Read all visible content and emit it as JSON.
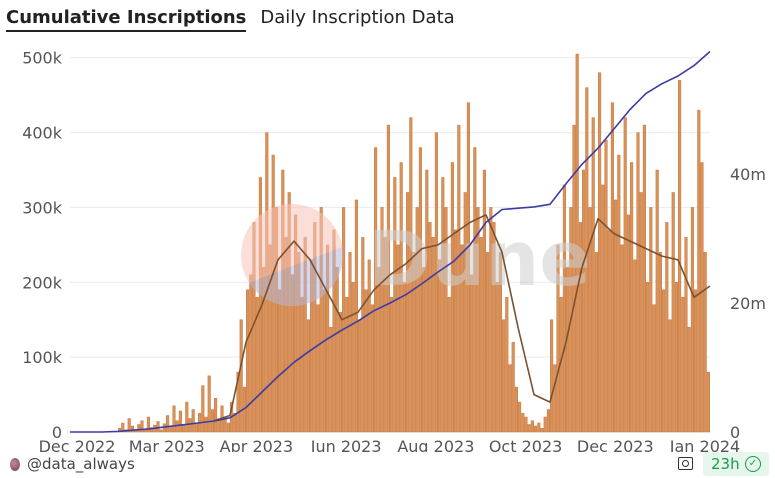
{
  "tabs": [
    {
      "label": "Cumulative Inscriptions",
      "active": true
    },
    {
      "label": "Daily Inscription Data",
      "active": false
    }
  ],
  "chart_data": {
    "type": "bar",
    "title": "",
    "xlabel": "",
    "ylabel": "",
    "x_tick_labels": [
      "Dec 2022",
      "Mar 2023",
      "Apr 2023",
      "Jun 2023",
      "Aug 2023",
      "Oct 2023",
      "Dec 2023",
      "Jan 2024"
    ],
    "y_left": {
      "ticks": [
        "0",
        "100k",
        "200k",
        "300k",
        "400k",
        "500k"
      ],
      "tick_values": [
        0,
        100000,
        200000,
        300000,
        400000,
        500000
      ],
      "range": [
        0,
        517000
      ]
    },
    "y_right": {
      "ticks": [
        "0",
        "20m",
        "40m"
      ],
      "tick_values": [
        0,
        20000000,
        40000000
      ],
      "range": [
        0,
        60000000
      ]
    },
    "grid": true,
    "legend": "none",
    "colors": {
      "bars": "#d9925a",
      "bar_edge": "#c9763a",
      "cumulative_line": "#3c3ca6",
      "average_line": "#7a5232",
      "grid": "#ececec"
    },
    "series": [
      {
        "type": "bar",
        "axis": "left",
        "unit": "k",
        "values": [
          0,
          0,
          0,
          0,
          0,
          0,
          0,
          0,
          0,
          0,
          0,
          0,
          0,
          0,
          0,
          5,
          12,
          3,
          18,
          8,
          2,
          10,
          15,
          4,
          20,
          6,
          9,
          14,
          3,
          11,
          22,
          8,
          35,
          15,
          28,
          10,
          40,
          18,
          30,
          12,
          25,
          62,
          20,
          75,
          30,
          45,
          15,
          35,
          20,
          12,
          40,
          25,
          80,
          150,
          60,
          190,
          210,
          280,
          180,
          340,
          220,
          400,
          250,
          370,
          300,
          190,
          350,
          260,
          320,
          210,
          290,
          240,
          180,
          260,
          150,
          230,
          280,
          170,
          300,
          190,
          250,
          140,
          270,
          220,
          160,
          300,
          180,
          240,
          200,
          310,
          150,
          260,
          190,
          230,
          170,
          380,
          220,
          300,
          260,
          410,
          180,
          340,
          250,
          360,
          200,
          320,
          420,
          240,
          300,
          380,
          220,
          350,
          280,
          260,
          400,
          230,
          340,
          300,
          180,
          360,
          270,
          410,
          250,
          320,
          440,
          210,
          380,
          300,
          260,
          350,
          240,
          300,
          280,
          200,
          240,
          150,
          180,
          90,
          120,
          60,
          40,
          25,
          20,
          10,
          15,
          8,
          12,
          5,
          20,
          30,
          150,
          90,
          250,
          180,
          330,
          220,
          300,
          410,
          505,
          280,
          350,
          460,
          300,
          420,
          240,
          480,
          330,
          390,
          270,
          440,
          310,
          370,
          250,
          420,
          290,
          360,
          230,
          400,
          320,
          410,
          200,
          300,
          170,
          350,
          240,
          190,
          280,
          150,
          320,
          200,
          470,
          180,
          260,
          140,
          300,
          190,
          430,
          360,
          240,
          80
        ]
      },
      {
        "type": "line",
        "axis": "left",
        "unit": "k",
        "values": [
          null,
          null,
          null,
          null,
          null,
          null,
          null,
          null,
          null,
          15,
          22,
          120,
          170,
          230,
          255,
          230,
          190,
          150,
          160,
          190,
          210,
          225,
          245,
          250,
          265,
          280,
          290,
          240,
          140,
          50,
          40,
          120,
          220,
          285,
          265,
          255,
          245,
          235,
          230,
          180,
          195
        ]
      },
      {
        "type": "line",
        "axis": "right",
        "unit": "m",
        "values": [
          0,
          0,
          0,
          0.1,
          0.3,
          0.5,
          0.8,
          1.1,
          1.4,
          1.7,
          2.2,
          3.8,
          6.2,
          8.6,
          10.8,
          12.6,
          14.3,
          15.8,
          17.2,
          18.8,
          20,
          21.3,
          23,
          24.8,
          26.5,
          29,
          32.5,
          34.5,
          34.7,
          34.9,
          35.3,
          38.5,
          41.5,
          44,
          47,
          50,
          52.5,
          54,
          55.2,
          56.8,
          59
        ]
      }
    ]
  },
  "watermark": {
    "text": "Dune"
  },
  "footer": {
    "author": "@data_always",
    "freshness": "23h",
    "icons": [
      "avatar",
      "camera-icon",
      "check-circle-icon"
    ]
  }
}
